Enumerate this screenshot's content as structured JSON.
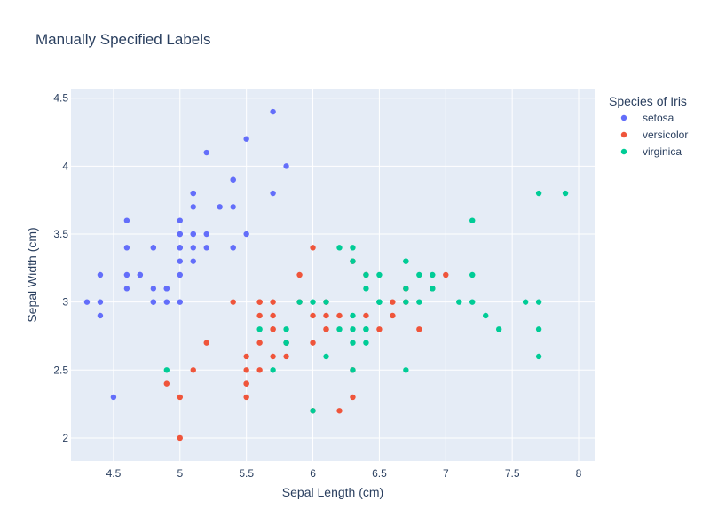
{
  "chart_data": {
    "type": "scatter",
    "title": "Manually Specified Labels",
    "xlabel": "Sepal Length (cm)",
    "ylabel": "Sepal Width (cm)",
    "xlim": [
      4.18,
      8.12
    ],
    "ylim": [
      1.83,
      4.57
    ],
    "xticks": [
      4.5,
      5,
      5.5,
      6,
      6.5,
      7,
      7.5,
      8
    ],
    "yticks": [
      2,
      2.5,
      3,
      3.5,
      4,
      4.5
    ],
    "grid": true,
    "legend": {
      "title": "Species of Iris",
      "placement": "top-right-outside"
    },
    "series": [
      {
        "name": "setosa",
        "color": "#636efa",
        "points": [
          [
            5.1,
            3.5
          ],
          [
            4.9,
            3.0
          ],
          [
            4.7,
            3.2
          ],
          [
            4.6,
            3.1
          ],
          [
            5.0,
            3.6
          ],
          [
            5.4,
            3.9
          ],
          [
            4.6,
            3.4
          ],
          [
            5.0,
            3.4
          ],
          [
            4.4,
            2.9
          ],
          [
            4.9,
            3.1
          ],
          [
            5.4,
            3.7
          ],
          [
            4.8,
            3.4
          ],
          [
            4.8,
            3.0
          ],
          [
            4.3,
            3.0
          ],
          [
            5.8,
            4.0
          ],
          [
            5.7,
            4.4
          ],
          [
            5.4,
            3.9
          ],
          [
            5.1,
            3.5
          ],
          [
            5.7,
            3.8
          ],
          [
            5.1,
            3.8
          ],
          [
            5.4,
            3.4
          ],
          [
            5.1,
            3.7
          ],
          [
            4.6,
            3.6
          ],
          [
            5.1,
            3.3
          ],
          [
            4.8,
            3.4
          ],
          [
            5.0,
            3.0
          ],
          [
            5.0,
            3.4
          ],
          [
            5.2,
            3.5
          ],
          [
            5.2,
            3.4
          ],
          [
            4.7,
            3.2
          ],
          [
            4.8,
            3.1
          ],
          [
            5.4,
            3.4
          ],
          [
            5.2,
            4.1
          ],
          [
            5.5,
            4.2
          ],
          [
            4.9,
            3.1
          ],
          [
            5.0,
            3.2
          ],
          [
            5.5,
            3.5
          ],
          [
            4.9,
            3.1
          ],
          [
            4.4,
            3.0
          ],
          [
            5.1,
            3.4
          ],
          [
            5.0,
            3.5
          ],
          [
            4.5,
            2.3
          ],
          [
            4.4,
            3.2
          ],
          [
            5.0,
            3.5
          ],
          [
            5.1,
            3.8
          ],
          [
            4.8,
            3.0
          ],
          [
            5.1,
            3.8
          ],
          [
            4.6,
            3.2
          ],
          [
            5.3,
            3.7
          ],
          [
            5.0,
            3.3
          ]
        ]
      },
      {
        "name": "versicolor",
        "color": "#ef553b",
        "points": [
          [
            7.0,
            3.2
          ],
          [
            6.4,
            3.2
          ],
          [
            6.9,
            3.1
          ],
          [
            5.5,
            2.3
          ],
          [
            6.5,
            2.8
          ],
          [
            5.7,
            2.8
          ],
          [
            6.3,
            3.3
          ],
          [
            4.9,
            2.4
          ],
          [
            6.6,
            2.9
          ],
          [
            5.2,
            2.7
          ],
          [
            5.0,
            2.0
          ],
          [
            5.9,
            3.0
          ],
          [
            6.0,
            2.2
          ],
          [
            6.1,
            2.9
          ],
          [
            5.6,
            2.9
          ],
          [
            6.7,
            3.1
          ],
          [
            5.6,
            3.0
          ],
          [
            5.8,
            2.7
          ],
          [
            6.2,
            2.2
          ],
          [
            5.6,
            2.5
          ],
          [
            5.9,
            3.2
          ],
          [
            6.1,
            2.8
          ],
          [
            6.3,
            2.5
          ],
          [
            6.1,
            2.8
          ],
          [
            6.4,
            2.9
          ],
          [
            6.6,
            3.0
          ],
          [
            6.8,
            2.8
          ],
          [
            6.7,
            3.0
          ],
          [
            6.0,
            2.9
          ],
          [
            5.7,
            2.6
          ],
          [
            5.5,
            2.4
          ],
          [
            5.5,
            2.4
          ],
          [
            5.8,
            2.7
          ],
          [
            6.0,
            2.7
          ],
          [
            5.4,
            3.0
          ],
          [
            6.0,
            3.4
          ],
          [
            6.7,
            3.1
          ],
          [
            6.3,
            2.3
          ],
          [
            5.6,
            3.0
          ],
          [
            5.5,
            2.5
          ],
          [
            5.5,
            2.6
          ],
          [
            6.1,
            3.0
          ],
          [
            5.8,
            2.6
          ],
          [
            5.0,
            2.3
          ],
          [
            5.6,
            2.7
          ],
          [
            5.7,
            3.0
          ],
          [
            5.7,
            2.9
          ],
          [
            6.2,
            2.9
          ],
          [
            5.1,
            2.5
          ],
          [
            5.7,
            2.8
          ]
        ]
      },
      {
        "name": "virginica",
        "color": "#00cc96",
        "points": [
          [
            6.3,
            3.3
          ],
          [
            5.8,
            2.7
          ],
          [
            7.1,
            3.0
          ],
          [
            6.3,
            2.9
          ],
          [
            6.5,
            3.0
          ],
          [
            7.6,
            3.0
          ],
          [
            4.9,
            2.5
          ],
          [
            7.3,
            2.9
          ],
          [
            6.7,
            2.5
          ],
          [
            7.2,
            3.6
          ],
          [
            6.5,
            3.2
          ],
          [
            6.4,
            2.7
          ],
          [
            6.8,
            3.0
          ],
          [
            5.7,
            2.5
          ],
          [
            5.8,
            2.8
          ],
          [
            6.4,
            3.2
          ],
          [
            6.5,
            3.0
          ],
          [
            7.7,
            3.8
          ],
          [
            7.7,
            2.6
          ],
          [
            6.0,
            2.2
          ],
          [
            6.9,
            3.2
          ],
          [
            5.6,
            2.8
          ],
          [
            7.7,
            2.8
          ],
          [
            6.3,
            2.7
          ],
          [
            6.7,
            3.3
          ],
          [
            7.2,
            3.2
          ],
          [
            6.2,
            2.8
          ],
          [
            6.1,
            3.0
          ],
          [
            6.4,
            2.8
          ],
          [
            7.2,
            3.0
          ],
          [
            7.4,
            2.8
          ],
          [
            7.9,
            3.8
          ],
          [
            6.4,
            2.8
          ],
          [
            6.3,
            2.8
          ],
          [
            6.1,
            2.6
          ],
          [
            7.7,
            3.0
          ],
          [
            6.3,
            3.4
          ],
          [
            6.4,
            3.1
          ],
          [
            6.0,
            3.0
          ],
          [
            6.9,
            3.1
          ],
          [
            6.7,
            3.1
          ],
          [
            6.9,
            3.1
          ],
          [
            5.8,
            2.7
          ],
          [
            6.8,
            3.2
          ],
          [
            6.7,
            3.3
          ],
          [
            6.7,
            3.0
          ],
          [
            6.3,
            2.5
          ],
          [
            6.5,
            3.0
          ],
          [
            6.2,
            3.4
          ],
          [
            5.9,
            3.0
          ]
        ]
      }
    ]
  }
}
